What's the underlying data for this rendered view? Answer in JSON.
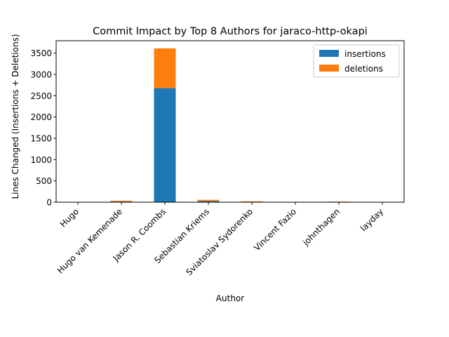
{
  "chart_data": {
    "type": "bar",
    "stacked": true,
    "title": "Commit Impact by Top 8 Authors for jaraco-http-okapi",
    "xlabel": "Author",
    "ylabel": "Lines Changed (Insertions + Deletions)",
    "categories": [
      "Hugo",
      "Hugo van Kemenade",
      "Jason R. Coombs",
      "Sebastian Kriems",
      "Sviatoslav Sydorenko",
      "Vincent Fazio",
      "johnthagen",
      "layday"
    ],
    "series": [
      {
        "name": "insertions",
        "color": "#1f77b4",
        "values": [
          2,
          15,
          2680,
          25,
          8,
          1,
          10,
          2
        ]
      },
      {
        "name": "deletions",
        "color": "#ff7f0e",
        "values": [
          1,
          20,
          930,
          30,
          12,
          1,
          5,
          2
        ]
      }
    ],
    "ylim": [
      0,
      3790
    ],
    "yticks": [
      0,
      500,
      1000,
      1500,
      2000,
      2500,
      3000,
      3500
    ],
    "grid": false,
    "legend_position": "top-right"
  }
}
